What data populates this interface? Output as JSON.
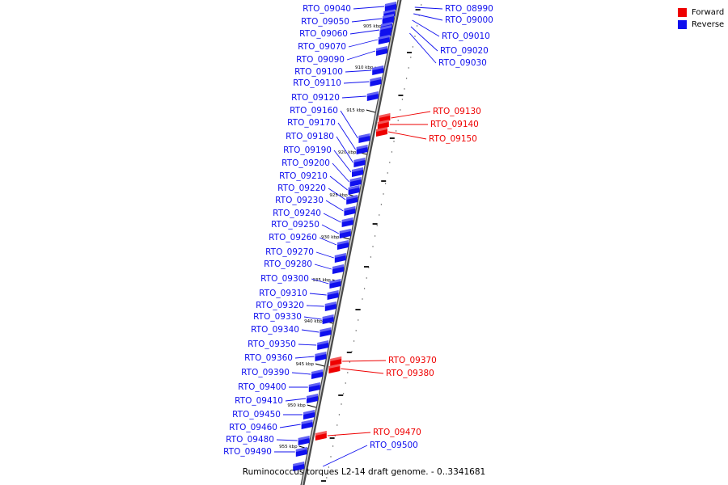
{
  "legend": {
    "forward": {
      "label": "Forward",
      "color": "#ee0000"
    },
    "reverse": {
      "label": "Reverse",
      "color": "#1010ee"
    }
  },
  "caption": "Ruminococcus torques L2-14 draft genome. - 0..3341681",
  "scale_ticks": [
    "905 kbp",
    "910 kbp",
    "915 kbp",
    "920 kbp",
    "925 kbp",
    "930 kbp",
    "935 kbp",
    "940 kbp",
    "945 kbp",
    "950 kbp",
    "955 kbp"
  ],
  "genes": [
    {
      "id": "RTO_08990",
      "strand": "reverse"
    },
    {
      "id": "RTO_09000",
      "strand": "reverse"
    },
    {
      "id": "RTO_09010",
      "strand": "reverse"
    },
    {
      "id": "RTO_09020",
      "strand": "reverse"
    },
    {
      "id": "RTO_09030",
      "strand": "reverse"
    },
    {
      "id": "RTO_09040",
      "strand": "reverse"
    },
    {
      "id": "RTO_09050",
      "strand": "reverse"
    },
    {
      "id": "RTO_09060",
      "strand": "reverse"
    },
    {
      "id": "RTO_09070",
      "strand": "reverse"
    },
    {
      "id": "RTO_09090",
      "strand": "reverse"
    },
    {
      "id": "RTO_09100",
      "strand": "reverse"
    },
    {
      "id": "RTO_09110",
      "strand": "reverse"
    },
    {
      "id": "RTO_09120",
      "strand": "reverse"
    },
    {
      "id": "RTO_09130",
      "strand": "forward"
    },
    {
      "id": "RTO_09140",
      "strand": "forward"
    },
    {
      "id": "RTO_09150",
      "strand": "forward"
    },
    {
      "id": "RTO_09160",
      "strand": "reverse"
    },
    {
      "id": "RTO_09170",
      "strand": "reverse"
    },
    {
      "id": "RTO_09180",
      "strand": "reverse"
    },
    {
      "id": "RTO_09190",
      "strand": "reverse"
    },
    {
      "id": "RTO_09200",
      "strand": "reverse"
    },
    {
      "id": "RTO_09210",
      "strand": "reverse"
    },
    {
      "id": "RTO_09220",
      "strand": "reverse"
    },
    {
      "id": "RTO_09230",
      "strand": "reverse"
    },
    {
      "id": "RTO_09240",
      "strand": "reverse"
    },
    {
      "id": "RTO_09250",
      "strand": "reverse"
    },
    {
      "id": "RTO_09260",
      "strand": "reverse"
    },
    {
      "id": "RTO_09270",
      "strand": "reverse"
    },
    {
      "id": "RTO_09280",
      "strand": "reverse"
    },
    {
      "id": "RTO_09300",
      "strand": "reverse"
    },
    {
      "id": "RTO_09310",
      "strand": "reverse"
    },
    {
      "id": "RTO_09320",
      "strand": "reverse"
    },
    {
      "id": "RTO_09330",
      "strand": "reverse"
    },
    {
      "id": "RTO_09340",
      "strand": "reverse"
    },
    {
      "id": "RTO_09350",
      "strand": "reverse"
    },
    {
      "id": "RTO_09360",
      "strand": "reverse"
    },
    {
      "id": "RTO_09370",
      "strand": "forward"
    },
    {
      "id": "RTO_09380",
      "strand": "forward"
    },
    {
      "id": "RTO_09390",
      "strand": "reverse"
    },
    {
      "id": "RTO_09400",
      "strand": "reverse"
    },
    {
      "id": "RTO_09410",
      "strand": "reverse"
    },
    {
      "id": "RTO_09450",
      "strand": "reverse"
    },
    {
      "id": "RTO_09460",
      "strand": "reverse"
    },
    {
      "id": "RTO_09470",
      "strand": "forward"
    },
    {
      "id": "RTO_09480",
      "strand": "reverse"
    },
    {
      "id": "RTO_09490",
      "strand": "reverse"
    },
    {
      "id": "RTO_09500",
      "strand": "reverse"
    }
  ]
}
